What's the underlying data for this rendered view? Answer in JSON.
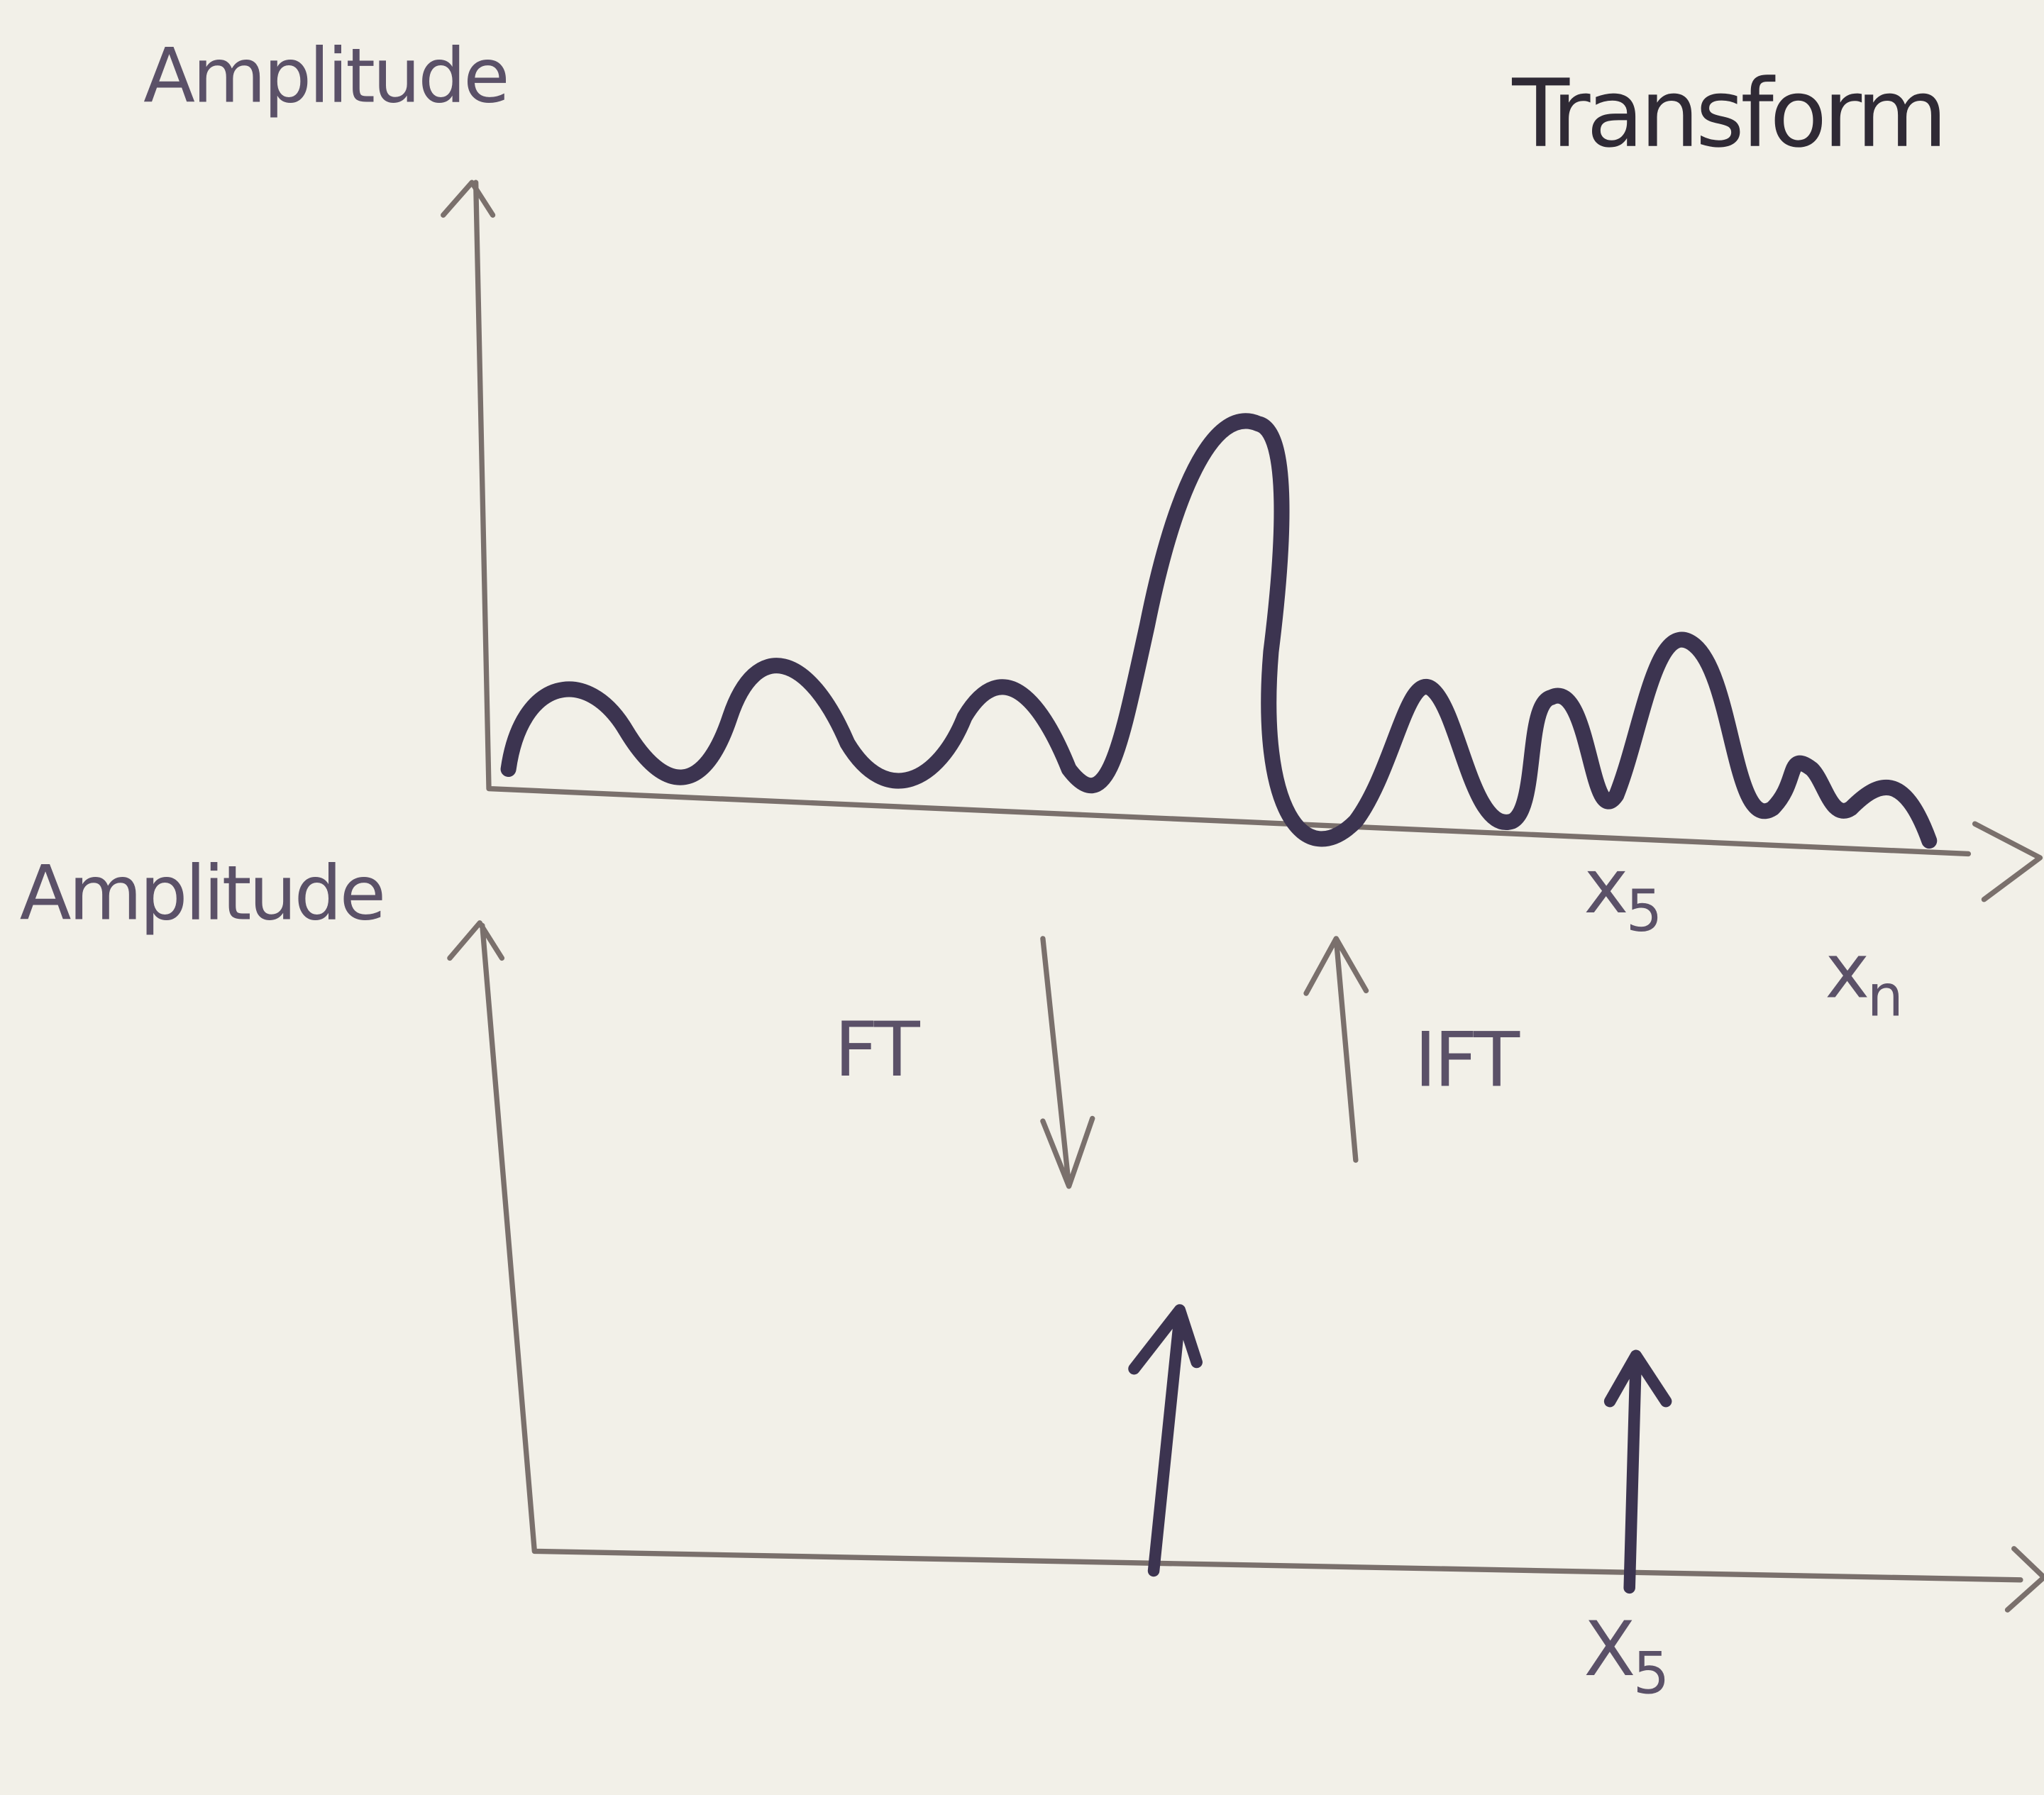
{
  "title": "Transform",
  "top_plot": {
    "y_label": "Amplitude",
    "markers": [
      {
        "base": "x",
        "sub": "5"
      },
      {
        "base": "x",
        "sub": "n"
      }
    ]
  },
  "transforms": {
    "forward": "FT",
    "inverse": "IFT"
  },
  "bottom_plot": {
    "y_label": "Amplitude",
    "markers": [
      {
        "base": "X",
        "sub": "5"
      }
    ]
  }
}
